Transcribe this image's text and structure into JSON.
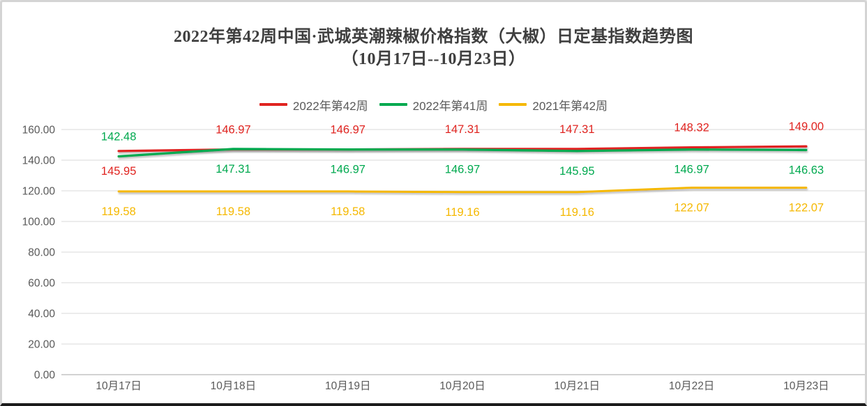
{
  "title": {
    "line1": "2022年第42周中国·武城英潮辣椒价格指数（大椒）日定基指数趋势图",
    "line2": "（10月17日--10月23日）"
  },
  "colors": {
    "grid": "#d9d9d9",
    "axis_line": "#c3c3c3",
    "axis_text": "#595959",
    "title_text": "#3f3f3f",
    "frame_border": "#d4d4d4",
    "bottom_edge": "#1c1c1c"
  },
  "chart_data": {
    "type": "line",
    "title": "2022年第42周中国·武城英潮辣椒价格指数（大椒）日定基指数趋势图（10月17日--10月23日）",
    "categories": [
      "10月17日",
      "10月18日",
      "10月19日",
      "10月20日",
      "10月21日",
      "10月22日",
      "10月23日"
    ],
    "series": [
      {
        "name": "2022年第42周",
        "color": "#e02420",
        "values": [
          145.95,
          146.97,
          146.97,
          147.31,
          147.31,
          148.32,
          149.0
        ],
        "label_side": [
          "below",
          "above",
          "above",
          "above",
          "above",
          "above",
          "above"
        ]
      },
      {
        "name": "2022年第41周",
        "color": "#00a94f",
        "values": [
          142.48,
          147.31,
          146.97,
          146.97,
          145.95,
          146.97,
          146.63
        ],
        "label_side": [
          "above",
          "below",
          "below",
          "below",
          "below",
          "below",
          "below"
        ]
      },
      {
        "name": "2021年第42周",
        "color": "#f5b800",
        "values": [
          119.58,
          119.58,
          119.58,
          119.16,
          119.16,
          122.07,
          122.07
        ],
        "label_side": [
          "below",
          "below",
          "below",
          "below",
          "below",
          "below",
          "below"
        ]
      }
    ],
    "xlabel": "",
    "ylabel": "",
    "ylim": [
      0,
      160
    ],
    "ytick_step": 20,
    "ytick_labels": [
      "0.00",
      "20.00",
      "40.00",
      "60.00",
      "80.00",
      "100.00",
      "120.00",
      "140.00",
      "160.00"
    ],
    "grid": true,
    "legend_position": "top",
    "data_labels": true,
    "data_label_format": "0.00"
  }
}
